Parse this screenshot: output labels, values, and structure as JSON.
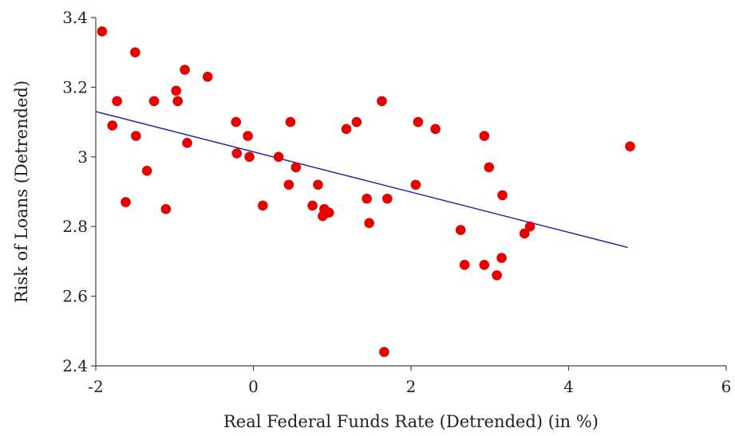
{
  "chart_data": {
    "type": "scatter",
    "title": "",
    "xlabel": "Real Federal Funds Rate (Detrended)  (in %)",
    "ylabel": "Risk of Loans (Detrended)",
    "xlim": [
      -2,
      6
    ],
    "ylim": [
      2.4,
      3.4
    ],
    "x_ticks": [
      -2,
      0,
      2,
      4,
      6
    ],
    "x_tick_labels": [
      "-2",
      "0",
      "2",
      "4",
      "6"
    ],
    "y_ticks": [
      2.4,
      2.6,
      2.8,
      3.0,
      3.2,
      3.4
    ],
    "y_tick_labels": [
      "2.4",
      "2.6",
      "2.8",
      "3",
      "3.2",
      "3.4"
    ],
    "grid": false,
    "legend": "none",
    "point_color": "#e60000",
    "trendline_color": "#1a1ab4",
    "trendline": {
      "x": [
        -2.0,
        4.75
      ],
      "y": [
        3.13,
        2.74
      ]
    },
    "series": [
      {
        "points": [
          [
            -1.92,
            3.36
          ],
          [
            -1.5,
            3.3
          ],
          [
            -0.87,
            3.25
          ],
          [
            -0.58,
            3.23
          ],
          [
            -0.98,
            3.19
          ],
          [
            -0.96,
            3.16
          ],
          [
            -1.26,
            3.16
          ],
          [
            -1.73,
            3.16
          ],
          [
            -1.79,
            3.09
          ],
          [
            -1.49,
            3.06
          ],
          [
            -0.84,
            3.04
          ],
          [
            -1.35,
            2.96
          ],
          [
            -1.62,
            2.87
          ],
          [
            -1.11,
            2.85
          ],
          [
            -0.22,
            3.1
          ],
          [
            -0.07,
            3.06
          ],
          [
            -0.21,
            3.01
          ],
          [
            -0.05,
            3.0
          ],
          [
            0.47,
            3.1
          ],
          [
            0.32,
            3.0
          ],
          [
            0.54,
            2.97
          ],
          [
            0.45,
            2.92
          ],
          [
            0.12,
            2.86
          ],
          [
            0.82,
            2.92
          ],
          [
            0.75,
            2.86
          ],
          [
            0.9,
            2.85
          ],
          [
            0.96,
            2.84
          ],
          [
            0.88,
            2.83
          ],
          [
            1.18,
            3.08
          ],
          [
            1.31,
            3.1
          ],
          [
            1.63,
            3.16
          ],
          [
            1.44,
            2.88
          ],
          [
            1.7,
            2.88
          ],
          [
            1.47,
            2.81
          ],
          [
            1.66,
            2.44
          ],
          [
            2.09,
            3.1
          ],
          [
            2.31,
            3.08
          ],
          [
            2.06,
            2.92
          ],
          [
            2.63,
            2.79
          ],
          [
            2.68,
            2.69
          ],
          [
            2.93,
            3.06
          ],
          [
            2.99,
            2.97
          ],
          [
            2.93,
            2.69
          ],
          [
            3.16,
            2.89
          ],
          [
            3.15,
            2.71
          ],
          [
            3.09,
            2.66
          ],
          [
            3.44,
            2.78
          ],
          [
            3.51,
            2.8
          ],
          [
            4.78,
            3.03
          ]
        ]
      }
    ]
  }
}
